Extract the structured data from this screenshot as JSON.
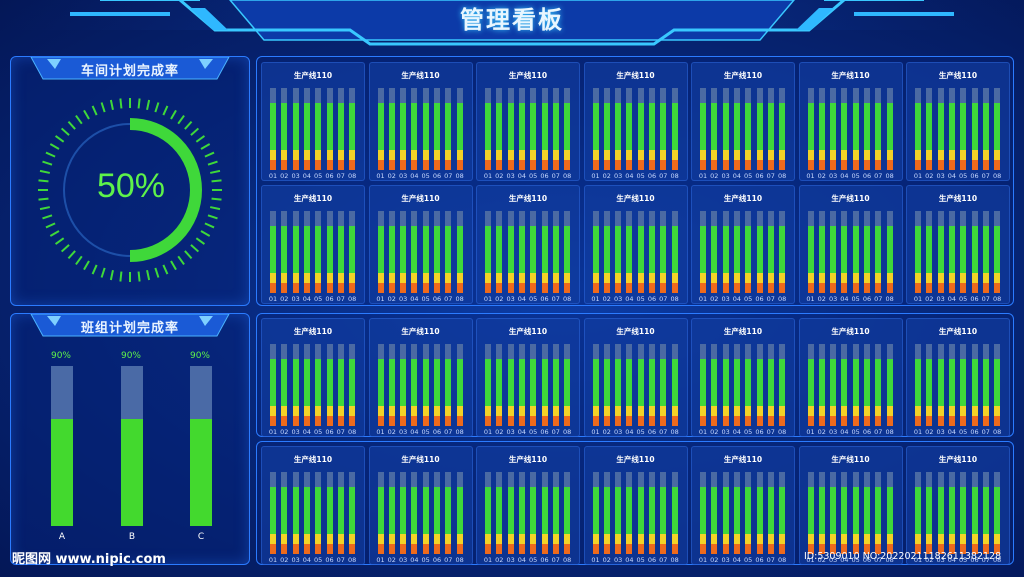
{
  "header": {
    "title": "管理看板"
  },
  "workshop_panel": {
    "title": "车间计划完成率",
    "value_text": "50%",
    "progress": 0.5
  },
  "team_panel": {
    "title": "班组计划完成率",
    "teams": [
      {
        "label": "A",
        "percent_text": "90%",
        "fill": 0.67
      },
      {
        "label": "B",
        "percent_text": "90%",
        "fill": 0.67
      },
      {
        "label": "C",
        "percent_text": "90%",
        "fill": 0.67
      }
    ]
  },
  "line_card": {
    "title": "生产线110",
    "x_labels": [
      "01",
      "02",
      "03",
      "04",
      "05",
      "06",
      "07",
      "08"
    ],
    "bar_levels": {
      "green_top": 0.82,
      "yellow_top": 0.25,
      "orange_top": 0.12
    }
  },
  "colors": {
    "accent": "#2b7bff",
    "green": "#3fd83a",
    "yellow": "#f2d327",
    "orange": "#ee6a1c",
    "bar_background": "#4b6aa3"
  },
  "watermark": {
    "site": "昵图网 www.nipic.com",
    "id_text": "ID:5309010 NO:20220211182611382128"
  }
}
